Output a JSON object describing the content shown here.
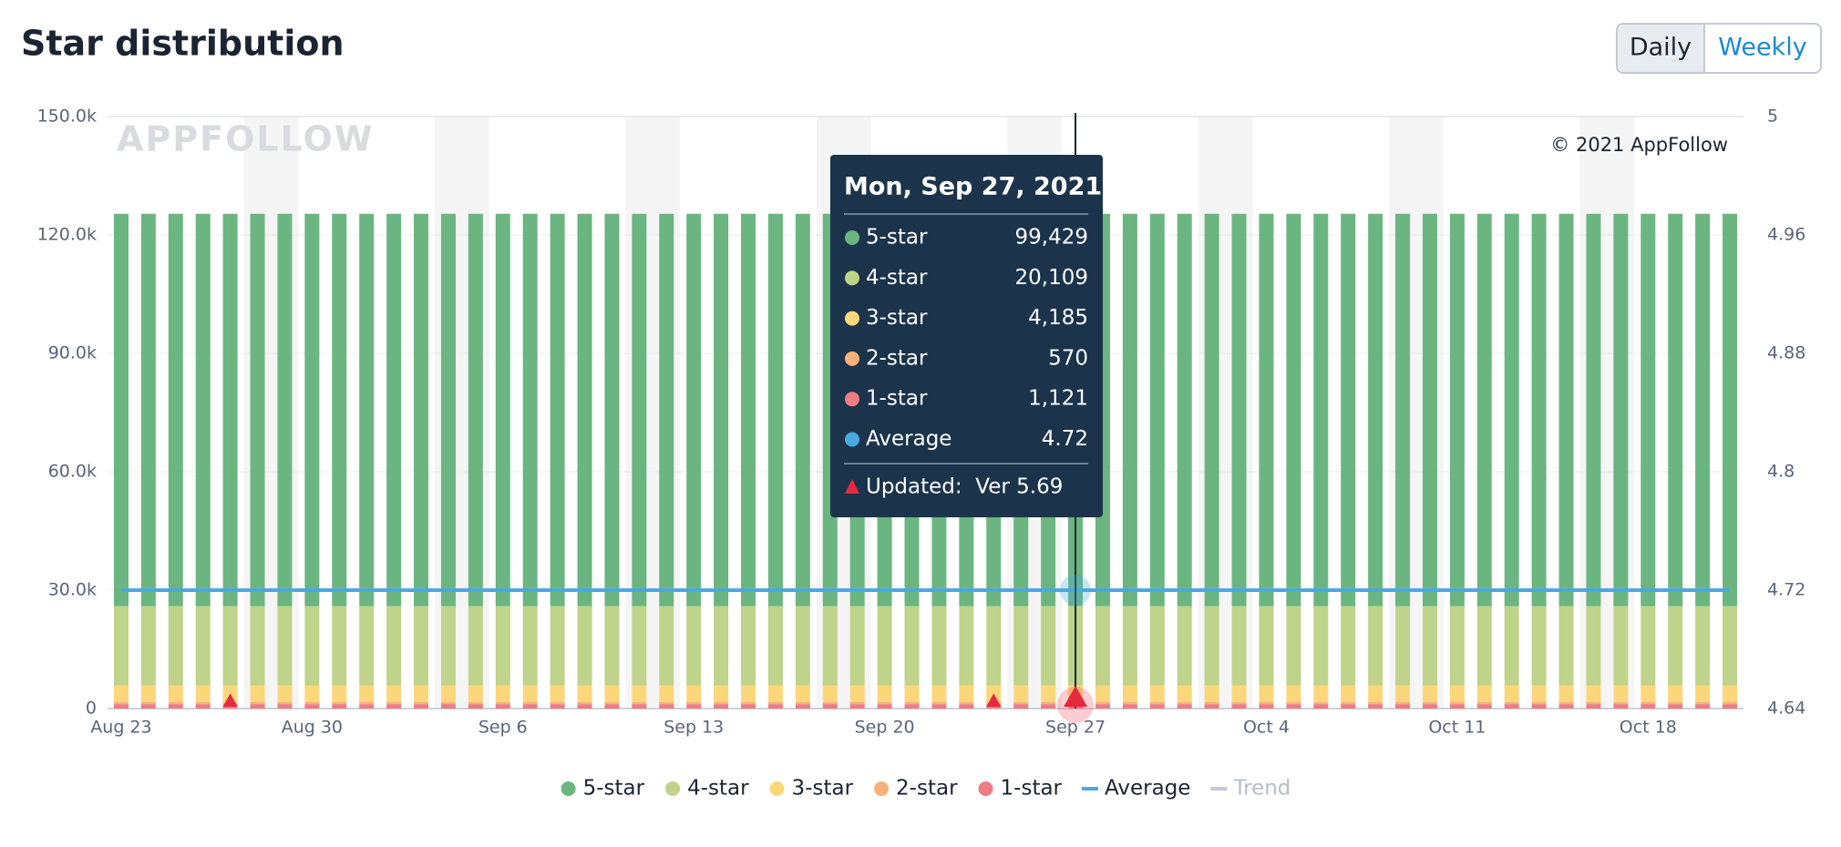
{
  "header": {
    "title": "Star distribution",
    "buttons": [
      "Daily",
      "Weekly"
    ]
  },
  "watermark": "APPFOLLOW",
  "copyright": "© 2021 AppFollow",
  "chart_data": {
    "type": "bar",
    "stacked": true,
    "categories": [
      "Aug 23",
      null,
      null,
      null,
      null,
      null,
      null,
      "Aug 30",
      null,
      null,
      null,
      null,
      null,
      null,
      "Sep 6",
      null,
      null,
      null,
      null,
      null,
      null,
      "Sep 13",
      null,
      null,
      null,
      null,
      null,
      null,
      "Sep 20",
      null,
      null,
      null,
      null,
      null,
      null,
      "Sep 27",
      null,
      null,
      null,
      null,
      null,
      null,
      "Oct 4",
      null,
      null,
      null,
      null,
      null,
      null,
      "Oct 11",
      null,
      null,
      null,
      null,
      null,
      null,
      "Oct 18",
      null,
      null,
      null
    ],
    "series": [
      {
        "name": "5-star",
        "color": "#6bb581",
        "values": [
          99400,
          99400,
          99400,
          99400,
          99400,
          99400,
          99400,
          99400,
          99400,
          99400,
          99400,
          99400,
          99400,
          99400,
          99400,
          99400,
          99400,
          99400,
          99400,
          99400,
          99400,
          99400,
          99400,
          99400,
          99400,
          99400,
          99400,
          99400,
          99400,
          99400,
          99400,
          99400,
          99400,
          99400,
          99400,
          99429,
          99400,
          99400,
          99400,
          99400,
          99400,
          99400,
          99400,
          99400,
          99400,
          99400,
          99400,
          99400,
          99400,
          99400,
          99400,
          99400,
          99400,
          99400,
          99400,
          99400,
          99400,
          99400,
          99400,
          99400
        ]
      },
      {
        "name": "4-star",
        "color": "#bfd38a",
        "values": [
          20100,
          20100,
          20100,
          20100,
          20100,
          20100,
          20100,
          20100,
          20100,
          20100,
          20100,
          20100,
          20100,
          20100,
          20100,
          20100,
          20100,
          20100,
          20100,
          20100,
          20100,
          20100,
          20100,
          20100,
          20100,
          20100,
          20100,
          20100,
          20100,
          20100,
          20100,
          20100,
          20100,
          20100,
          20100,
          20109,
          20100,
          20100,
          20100,
          20100,
          20100,
          20100,
          20100,
          20100,
          20100,
          20100,
          20100,
          20100,
          20100,
          20100,
          20100,
          20100,
          20100,
          20100,
          20100,
          20100,
          20100,
          20100,
          20100,
          20100
        ]
      },
      {
        "name": "3-star",
        "color": "#fcd77a",
        "values": [
          4180,
          4180,
          4180,
          4180,
          4180,
          4180,
          4180,
          4180,
          4180,
          4180,
          4180,
          4180,
          4180,
          4180,
          4180,
          4180,
          4180,
          4180,
          4180,
          4180,
          4180,
          4180,
          4180,
          4180,
          4180,
          4180,
          4180,
          4180,
          4180,
          4180,
          4180,
          4180,
          4180,
          4180,
          4180,
          4185,
          4180,
          4180,
          4180,
          4180,
          4180,
          4180,
          4180,
          4180,
          4180,
          4180,
          4180,
          4180,
          4180,
          4180,
          4180,
          4180,
          4180,
          4180,
          4180,
          4180,
          4180,
          4180,
          4180,
          4180
        ]
      },
      {
        "name": "2-star",
        "color": "#f8b07a",
        "values": [
          570,
          570,
          570,
          570,
          570,
          570,
          570,
          570,
          570,
          570,
          570,
          570,
          570,
          570,
          570,
          570,
          570,
          570,
          570,
          570,
          570,
          570,
          570,
          570,
          570,
          570,
          570,
          570,
          570,
          570,
          570,
          570,
          570,
          570,
          570,
          570,
          570,
          570,
          570,
          570,
          570,
          570,
          570,
          570,
          570,
          570,
          570,
          570,
          570,
          570,
          570,
          570,
          570,
          570,
          570,
          570,
          570,
          570,
          570,
          570
        ]
      },
      {
        "name": "1-star",
        "color": "#ef7b85",
        "values": [
          1120,
          1120,
          1120,
          1120,
          1120,
          1120,
          1120,
          1120,
          1120,
          1120,
          1120,
          1120,
          1120,
          1120,
          1120,
          1120,
          1120,
          1120,
          1120,
          1120,
          1120,
          1120,
          1120,
          1120,
          1120,
          1120,
          1120,
          1120,
          1120,
          1120,
          1120,
          1120,
          1120,
          1120,
          1120,
          1121,
          1120,
          1120,
          1120,
          1120,
          1120,
          1120,
          1120,
          1120,
          1120,
          1120,
          1120,
          1120,
          1120,
          1120,
          1120,
          1120,
          1120,
          1120,
          1120,
          1120,
          1120,
          1120,
          1120,
          1120
        ]
      },
      {
        "name": "Average",
        "color": "#4aa9e0",
        "axis": "y2",
        "type": "line",
        "values": [
          4.72,
          4.72,
          4.72,
          4.72,
          4.72,
          4.72,
          4.72,
          4.72,
          4.72,
          4.72,
          4.72,
          4.72,
          4.72,
          4.72,
          4.72,
          4.72,
          4.72,
          4.72,
          4.72,
          4.72,
          4.72,
          4.72,
          4.72,
          4.72,
          4.72,
          4.72,
          4.72,
          4.72,
          4.72,
          4.72,
          4.72,
          4.72,
          4.72,
          4.72,
          4.72,
          4.72,
          4.72,
          4.72,
          4.72,
          4.72,
          4.72,
          4.72,
          4.72,
          4.72,
          4.72,
          4.72,
          4.72,
          4.72,
          4.72,
          4.72,
          4.72,
          4.72,
          4.72,
          4.72,
          4.72,
          4.72,
          4.72,
          4.72,
          4.72,
          4.72
        ]
      }
    ],
    "hidden_series": [
      {
        "name": "Trend",
        "color": "#c5cbd6"
      }
    ],
    "update_markers": [
      4,
      32,
      35
    ],
    "ylim": [
      0,
      150000
    ],
    "yticks": [
      {
        "value": 0,
        "label": "0"
      },
      {
        "value": 30000,
        "label": "30.0k"
      },
      {
        "value": 60000,
        "label": "60.0k"
      },
      {
        "value": 90000,
        "label": "90.0k"
      },
      {
        "value": 120000,
        "label": "120.0k"
      },
      {
        "value": 150000,
        "label": "150.0k"
      }
    ],
    "y2lim": [
      4.64,
      5.04
    ],
    "y2ticks": [
      4.64,
      4.72,
      4.8,
      4.88,
      4.96,
      {
        "value": 5.04,
        "label": "5"
      }
    ],
    "grid": true,
    "tooltip": {
      "index": 35,
      "title": "Mon, Sep 27, 2021",
      "values": [
        "99,429",
        "20,109",
        "4,185",
        "570",
        "1,121",
        "4.72"
      ],
      "update": "Updated:  Ver 5.69"
    }
  }
}
